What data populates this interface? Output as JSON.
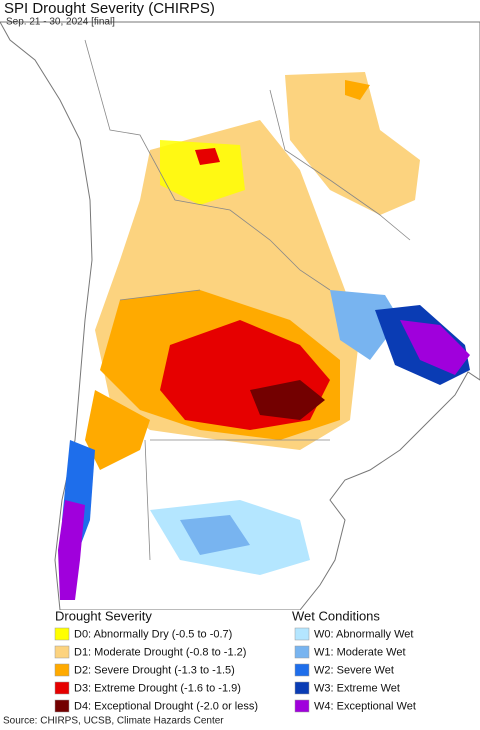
{
  "header": {
    "title": "SPI Drought Severity (CHIRPS)",
    "subtitle": "Sep. 21 - 30, 2024 [final]"
  },
  "legend": {
    "drought": {
      "title": "Drought Severity",
      "items": [
        {
          "label": "D0: Abnormally Dry (-0.5 to -0.7)",
          "color": "#ffff00"
        },
        {
          "label": "D1: Moderate Drought (-0.8 to -1.2)",
          "color": "#fcd37f"
        },
        {
          "label": "D2: Severe Drought (-1.3 to -1.5)",
          "color": "#ffaa00"
        },
        {
          "label": "D3: Extreme Drought (-1.6 to -1.9)",
          "color": "#e60000"
        },
        {
          "label": "D4: Exceptional Drought (-2.0 or less)",
          "color": "#730000"
        }
      ]
    },
    "wet": {
      "title": "Wet Conditions",
      "items": [
        {
          "label": "W0: Abnormally Wet",
          "color": "#b4e6ff"
        },
        {
          "label": "W1: Moderate Wet",
          "color": "#78b4f0"
        },
        {
          "label": "W2: Severe Wet",
          "color": "#1e6eeb"
        },
        {
          "label": "W3: Extreme Wet",
          "color": "#0a3cb4"
        },
        {
          "label": "W4: Exceptional Wet",
          "color": "#a000dc"
        }
      ]
    }
  },
  "footer": {
    "source": "Source: CHIRPS, UCSB, Climate Hazards Center"
  }
}
